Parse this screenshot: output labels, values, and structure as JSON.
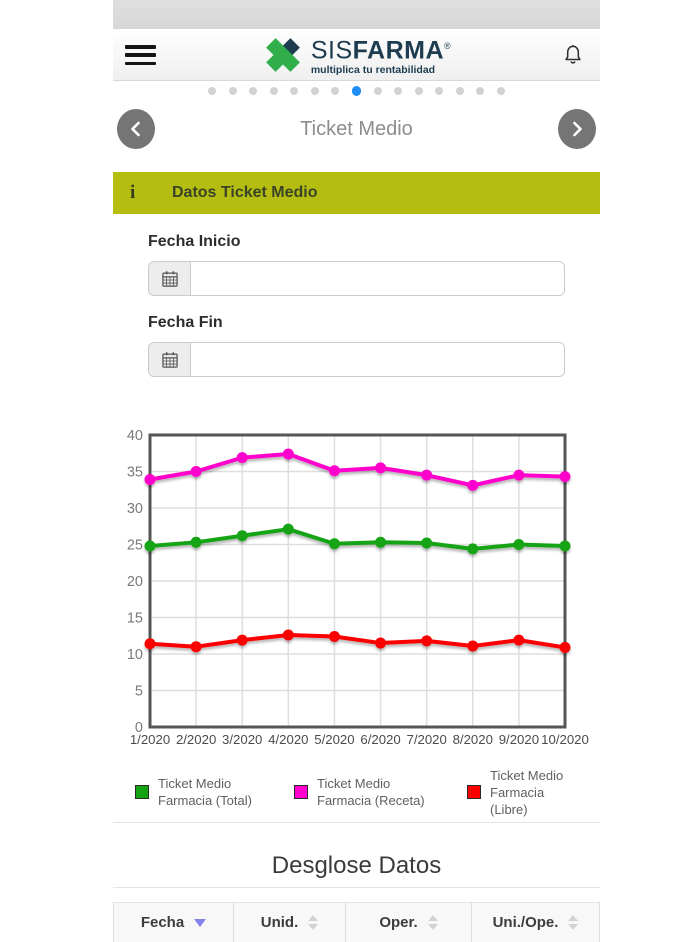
{
  "brand": {
    "part1": "SIS",
    "part2": "FARMA",
    "registered": "®",
    "tagline": "multiplica tu rentabilidad",
    "navy": "#1d3c50",
    "green": "#2fae49"
  },
  "carousel": {
    "dot_count": 15,
    "active_dot": 8,
    "active_color": "#1e8ef7"
  },
  "nav": {
    "title": "Ticket Medio"
  },
  "panel": {
    "info_icon": "i",
    "title": "Datos Ticket Medio",
    "background": "#b5bd11"
  },
  "form": {
    "start_label": "Fecha Inicio",
    "end_label": "Fecha Fin",
    "start_value": "",
    "end_value": "",
    "start_placeholder": "",
    "end_placeholder": ""
  },
  "chart_data": {
    "type": "line",
    "title": "",
    "xlabel": "",
    "ylabel": "",
    "categories": [
      "1/2020",
      "2/2020",
      "3/2020",
      "4/2020",
      "5/2020",
      "6/2020",
      "7/2020",
      "8/2020",
      "9/2020",
      "10/2020"
    ],
    "series": [
      {
        "name": "Ticket Medio Farmacia (Total)",
        "color": "#12a412",
        "values": [
          24.8,
          25.3,
          26.2,
          27.1,
          25.1,
          25.3,
          25.2,
          24.4,
          25.0,
          24.8
        ]
      },
      {
        "name": "Ticket Medio Farmacia (Receta)",
        "color": "#ff00cc",
        "values": [
          33.9,
          35.0,
          36.9,
          37.4,
          35.1,
          35.5,
          34.5,
          33.1,
          34.5,
          34.3
        ]
      },
      {
        "name": "Ticket Medio Farmacia (Libre)",
        "color": "#fb0000",
        "values": [
          11.4,
          11.0,
          11.9,
          12.6,
          12.4,
          11.5,
          11.8,
          11.1,
          11.9,
          10.9
        ]
      }
    ],
    "ylim": [
      0,
      40
    ],
    "ytick_step": 5,
    "grid": true,
    "legend_position": "bottom"
  },
  "breakdown": {
    "title": "Desglose Datos"
  },
  "table": {
    "columns": [
      {
        "label": "Fecha",
        "sort": "desc"
      },
      {
        "label": "Unid.",
        "sort": "none"
      },
      {
        "label": "Oper.",
        "sort": "none"
      },
      {
        "label": "Uni./Ope.",
        "sort": "none"
      }
    ],
    "sort_active_color": "#8282ec"
  }
}
